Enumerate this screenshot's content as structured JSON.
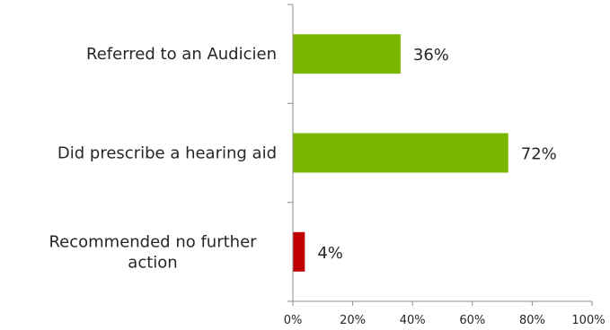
{
  "chart_data": {
    "type": "bar",
    "orientation": "horizontal",
    "categories": [
      [
        "Referred to an Audicien"
      ],
      [
        "Did prescribe a hearing aid"
      ],
      [
        "Recommended no further",
        "action"
      ]
    ],
    "values": [
      36,
      72,
      4
    ],
    "data_labels": [
      "36%",
      "72%",
      "4%"
    ],
    "bar_colors": [
      "#7ab800",
      "#7ab800",
      "#c00000"
    ],
    "xlim": [
      0,
      100
    ],
    "x_ticks": [
      0,
      20,
      40,
      60,
      80,
      100
    ],
    "x_tick_labels": [
      "0%",
      "20%",
      "40%",
      "60%",
      "80%",
      "100%"
    ],
    "grid": false,
    "legend": "none",
    "axis_color": "#8c8c8c"
  }
}
